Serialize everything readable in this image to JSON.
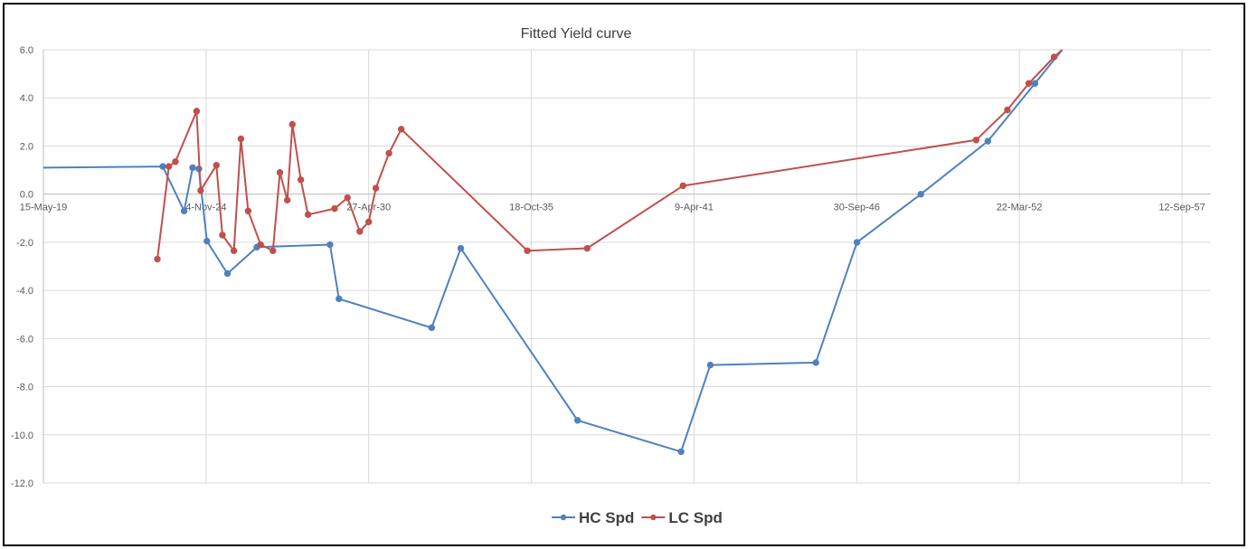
{
  "chart_data": {
    "type": "line",
    "title": "Fitted Yield curve",
    "xlabel": "",
    "ylabel": "",
    "x_axis_type": "date",
    "x_ticks": [
      "2019-05-15",
      "2024-11-04",
      "2030-04-27",
      "2035-10-18",
      "2041-04-09",
      "2046-09-30",
      "2052-03-22",
      "2057-09-12"
    ],
    "x_tick_labels": [
      "15-May-19",
      "4-Nov-24",
      "27-Apr-30",
      "18-Oct-35",
      "9-Apr-41",
      "30-Sep-46",
      "22-Mar-52",
      "12-Sep-57"
    ],
    "xlim": [
      "2019-05-15",
      "2057-09-12"
    ],
    "ylim": [
      -12,
      6
    ],
    "y_ticks": [
      6,
      4,
      2,
      0,
      -2,
      -4,
      -6,
      -8,
      -10,
      -12
    ],
    "y_tick_labels": [
      "6.0",
      "4.0",
      "2.0",
      "0.0",
      "-2.0",
      "-4.0",
      "-6.0",
      "-8.0",
      "-10.0",
      "-12.0"
    ],
    "grid": true,
    "legend_position": "bottom",
    "series": [
      {
        "name": "HC Spd",
        "color": "#4f81bd",
        "markers": [
          false,
          true,
          true,
          true,
          true,
          true,
          true,
          true,
          true,
          true,
          true,
          true,
          true,
          true,
          true,
          true,
          true,
          true,
          true,
          true,
          false
        ],
        "points": [
          {
            "x": "2019-05-15",
            "y": 1.1
          },
          {
            "x": "2023-05-22",
            "y": 1.15
          },
          {
            "x": "2024-02-08",
            "y": -0.7
          },
          {
            "x": "2024-05-23",
            "y": 1.1
          },
          {
            "x": "2024-08-08",
            "y": 1.05
          },
          {
            "x": "2024-11-14",
            "y": -1.95
          },
          {
            "x": "2025-07-25",
            "y": -3.3
          },
          {
            "x": "2026-07-22",
            "y": -2.2
          },
          {
            "x": "2029-01-06",
            "y": -2.1
          },
          {
            "x": "2029-04-26",
            "y": -4.35
          },
          {
            "x": "2032-06-09",
            "y": -5.55
          },
          {
            "x": "2033-06-02",
            "y": -2.25
          },
          {
            "x": "2037-05-08",
            "y": -9.4
          },
          {
            "x": "2040-11-01",
            "y": -10.7
          },
          {
            "x": "2041-10-26",
            "y": -7.1
          },
          {
            "x": "2045-05-16",
            "y": -7.0
          },
          {
            "x": "2046-10-04",
            "y": -2.0
          },
          {
            "x": "2048-11-27",
            "y": 0.0
          },
          {
            "x": "2051-03-01",
            "y": 2.2
          },
          {
            "x": "2052-09-30",
            "y": 4.6
          },
          {
            "x": "2053-09-01",
            "y": 6.0
          }
        ]
      },
      {
        "name": "LC Spd",
        "color": "#c0504d",
        "markers": [
          true,
          true,
          true,
          true,
          true,
          true,
          true,
          true,
          true,
          true,
          true,
          true,
          true,
          true,
          true,
          true,
          true,
          true,
          true,
          true,
          true,
          true,
          true,
          true,
          true,
          true,
          true,
          true,
          true,
          true,
          true,
          false
        ],
        "points": [
          {
            "x": "2023-03-16",
            "y": -2.7
          },
          {
            "x": "2023-08-04",
            "y": 1.15
          },
          {
            "x": "2023-10-24",
            "y": 1.35
          },
          {
            "x": "2024-07-11",
            "y": 3.45
          },
          {
            "x": "2024-08-29",
            "y": 0.15
          },
          {
            "x": "2025-03-11",
            "y": 1.2
          },
          {
            "x": "2025-05-24",
            "y": -1.7
          },
          {
            "x": "2025-10-12",
            "y": -2.35
          },
          {
            "x": "2026-01-07",
            "y": 2.3
          },
          {
            "x": "2026-04-05",
            "y": -0.7
          },
          {
            "x": "2026-09-06",
            "y": -2.1
          },
          {
            "x": "2027-02-04",
            "y": -2.35
          },
          {
            "x": "2027-05-01",
            "y": 0.9
          },
          {
            "x": "2027-07-31",
            "y": -0.25
          },
          {
            "x": "2027-10-01",
            "y": 2.9
          },
          {
            "x": "2028-01-13",
            "y": 0.6
          },
          {
            "x": "2028-04-11",
            "y": -0.85
          },
          {
            "x": "2029-03-03",
            "y": -0.6
          },
          {
            "x": "2029-08-09",
            "y": -0.15
          },
          {
            "x": "2030-01-07",
            "y": -1.55
          },
          {
            "x": "2030-04-27",
            "y": -1.15
          },
          {
            "x": "2030-07-24",
            "y": 0.25
          },
          {
            "x": "2031-01-01",
            "y": 1.7
          },
          {
            "x": "2031-06-01",
            "y": 2.7
          },
          {
            "x": "2035-08-29",
            "y": -2.35
          },
          {
            "x": "2037-09-03",
            "y": -2.25
          },
          {
            "x": "2040-11-24",
            "y": 0.35
          },
          {
            "x": "2050-10-08",
            "y": 2.25
          },
          {
            "x": "2051-10-27",
            "y": 3.5
          },
          {
            "x": "2052-07-16",
            "y": 4.6
          },
          {
            "x": "2053-05-23",
            "y": 5.7
          },
          {
            "x": "2053-09-01",
            "y": 6.0
          }
        ]
      }
    ]
  }
}
